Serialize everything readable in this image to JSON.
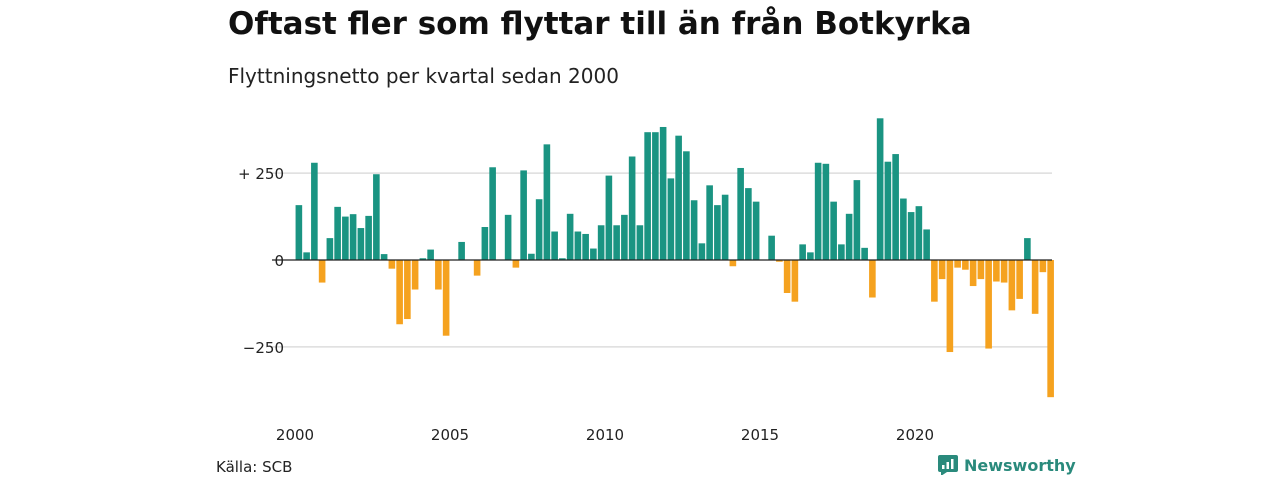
{
  "header": {
    "title": "Oftast fler som flyttar till än från Botkyrka",
    "subtitle": "Flyttningsnetto per kvartal sedan 2000"
  },
  "footer": {
    "source": "Källa: SCB",
    "brand": "Newsworthy"
  },
  "colors": {
    "positive": "#1a9482",
    "negative": "#f5a21f",
    "grid": "#dddddd",
    "zero_line": "#222222",
    "brand": "#2a8a7c"
  },
  "chart_data": {
    "type": "bar",
    "x_start": "2000",
    "frequency": "quarterly",
    "xticks": [
      "2000",
      "2005",
      "2010",
      "2015",
      "2020"
    ],
    "yticks": [
      250,
      0,
      -250
    ],
    "ytick_labels": [
      "+ 250",
      "0",
      "−250"
    ],
    "ylim": [
      -420,
      420
    ],
    "grid": true,
    "values": [
      158,
      22,
      280,
      -65,
      63,
      153,
      125,
      132,
      92,
      127,
      247,
      17,
      -25,
      -185,
      -170,
      -85,
      5,
      30,
      -85,
      -218,
      0,
      52,
      0,
      -45,
      95,
      267,
      0,
      130,
      -22,
      258,
      18,
      175,
      333,
      82,
      5,
      133,
      82,
      75,
      33,
      100,
      243,
      100,
      130,
      298,
      100,
      368,
      368,
      383,
      235,
      358,
      313,
      172,
      48,
      215,
      158,
      188,
      -18,
      265,
      207,
      168,
      0,
      70,
      -5,
      -95,
      -120,
      45,
      22,
      280,
      277,
      168,
      45,
      133,
      230,
      35,
      -108,
      408,
      283,
      305,
      177,
      138,
      155,
      88,
      -120,
      -55,
      -265,
      -22,
      -28,
      -75,
      -55,
      -255,
      -62,
      -65,
      -145,
      -112,
      63,
      -155,
      -35,
      -395
    ]
  }
}
